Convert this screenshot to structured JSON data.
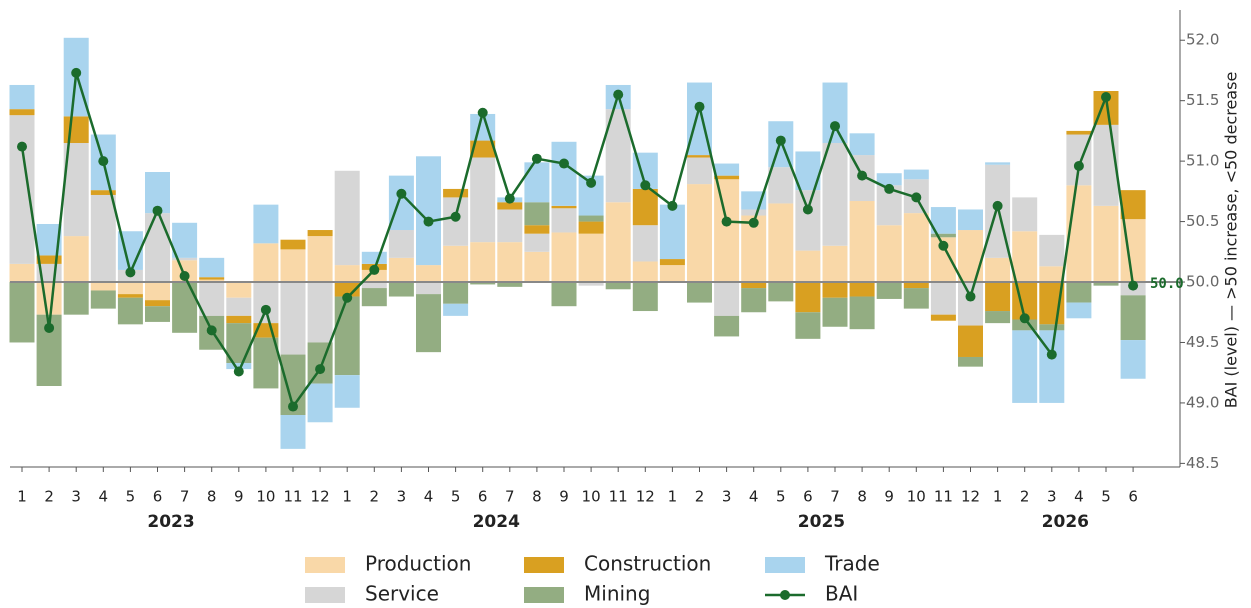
{
  "chart_data": {
    "type": "bar",
    "categories": [
      "1",
      "2",
      "3",
      "4",
      "5",
      "6",
      "7",
      "8",
      "9",
      "10",
      "11",
      "12",
      "1",
      "2",
      "3",
      "4",
      "5",
      "6",
      "7",
      "8",
      "9",
      "10",
      "11",
      "12",
      "1",
      "2",
      "3",
      "4",
      "5",
      "6",
      "7",
      "8",
      "9",
      "10",
      "11",
      "12",
      "1",
      "2",
      "3",
      "4",
      "5",
      "6"
    ],
    "year_labels": [
      "2023",
      "2024",
      "2025",
      "2026"
    ],
    "baseline": {
      "value": 50,
      "label": "50.0"
    },
    "ylabel": "BAI (level) — >50 increase, <50 decrease",
    "ylim": [
      48.47,
      52.25
    ],
    "yticks": [
      {
        "value": 48.5,
        "label": "48.5"
      },
      {
        "value": 49,
        "label": "49.0"
      },
      {
        "value": 49.5,
        "label": "49.5"
      },
      {
        "value": 50,
        "label": "50.0"
      },
      {
        "value": 50.5,
        "label": "50.5"
      },
      {
        "value": 51,
        "label": "51.0"
      },
      {
        "value": 51.5,
        "label": "51.5"
      },
      {
        "value": 52,
        "label": "52.0"
      }
    ],
    "series": [
      {
        "name": "Production",
        "color": "#f9d8a8",
        "values": [
          0.15,
          -0.27,
          0.38,
          -0.07,
          -0.1,
          -0.15,
          0.18,
          0.02,
          -0.13,
          0.32,
          0.27,
          0.38,
          0.14,
          0.1,
          0.2,
          0.14,
          0.3,
          0.33,
          0.33,
          0.25,
          0.41,
          0.4,
          0.66,
          0.17,
          0.14,
          0.81,
          0.85,
          0.55,
          0.65,
          0.26,
          0.3,
          0.67,
          0.47,
          0.57,
          0.37,
          0.43,
          0.2,
          0.42,
          0.13,
          0.8,
          0.63,
          0.52
        ]
      },
      {
        "name": "Service",
        "color": "#d6d6d6",
        "values": [
          1.23,
          0.15,
          0.77,
          0.72,
          0.1,
          0.57,
          0.02,
          -0.28,
          -0.15,
          -0.34,
          -0.6,
          -0.5,
          0.78,
          -0.05,
          0.23,
          -0.1,
          0.4,
          0.7,
          0.27,
          0.15,
          0.2,
          -0.03,
          0.77,
          0.3,
          0,
          0.22,
          -0.28,
          0.05,
          0.3,
          0.5,
          0.85,
          0.38,
          0.33,
          0.28,
          -0.27,
          -0.36,
          0.77,
          0.28,
          0.26,
          0.42,
          0.67,
          -0.11
        ]
      },
      {
        "name": "Construction",
        "color": "#d9a021",
        "values": [
          0.05,
          0.07,
          0.22,
          0.04,
          -0.03,
          -0.05,
          0,
          0.02,
          -0.06,
          -0.12,
          0.08,
          0.05,
          -0.12,
          0.05,
          0,
          0,
          0.07,
          0.14,
          0.06,
          0.07,
          0.02,
          0.1,
          0,
          0.3,
          0.05,
          0.02,
          0.03,
          -0.05,
          0,
          -0.25,
          -0.13,
          -0.12,
          0,
          -0.05,
          -0.05,
          -0.26,
          -0.24,
          -0.31,
          -0.35,
          0.03,
          0.28,
          0.24
        ]
      },
      {
        "name": "Mining",
        "color": "#93ad82",
        "values": [
          -0.5,
          -0.59,
          -0.27,
          -0.15,
          -0.22,
          -0.13,
          -0.42,
          -0.28,
          -0.33,
          -0.42,
          -0.5,
          -0.34,
          -0.65,
          -0.15,
          -0.12,
          -0.48,
          -0.18,
          -0.02,
          -0.04,
          0.19,
          -0.2,
          0.05,
          -0.06,
          -0.24,
          0,
          -0.17,
          -0.17,
          -0.2,
          -0.16,
          -0.22,
          -0.24,
          -0.27,
          -0.14,
          -0.17,
          0.03,
          -0.08,
          -0.1,
          -0.09,
          -0.05,
          -0.17,
          -0.03,
          -0.37
        ]
      },
      {
        "name": "Trade",
        "color": "#a9d4ee",
        "values": [
          0.2,
          0.26,
          0.65,
          0.46,
          0.32,
          0.34,
          0.29,
          0.16,
          -0.05,
          0.32,
          -0.28,
          -0.32,
          -0.27,
          0.1,
          0.45,
          0.9,
          -0.1,
          0.22,
          0.04,
          0.33,
          0.53,
          0.33,
          0.2,
          0.3,
          0.45,
          0.6,
          0.1,
          0.15,
          0.38,
          0.32,
          0.5,
          0.18,
          0.1,
          0.08,
          0.22,
          0.17,
          0.02,
          -0.6,
          -0.6,
          -0.13,
          0,
          -0.32
        ]
      },
      {
        "name": "BAI",
        "color": "#1b6b2c",
        "type": "line",
        "values": [
          51.12,
          49.62,
          51.73,
          51.0,
          50.08,
          50.59,
          50.05,
          49.6,
          49.26,
          49.77,
          48.97,
          49.28,
          49.87,
          50.1,
          50.73,
          50.5,
          50.54,
          51.4,
          50.69,
          51.02,
          50.98,
          50.82,
          51.55,
          50.8,
          50.63,
          51.45,
          50.5,
          50.49,
          51.17,
          50.6,
          51.29,
          50.88,
          50.77,
          50.7,
          50.3,
          49.88,
          50.63,
          49.7,
          49.4,
          50.96,
          51.53,
          49.97
        ]
      }
    ]
  }
}
